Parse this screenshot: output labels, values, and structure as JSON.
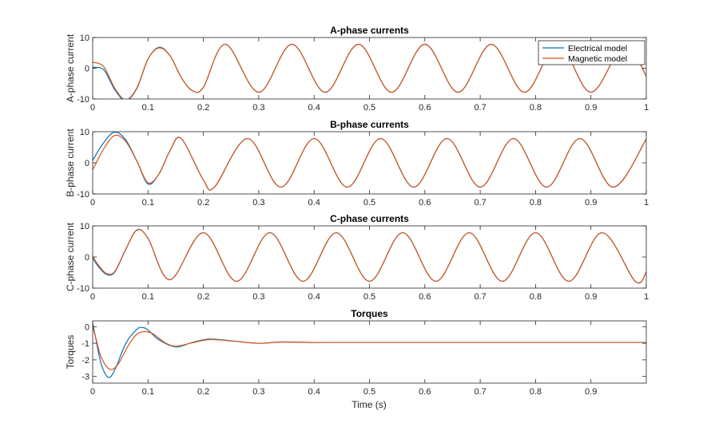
{
  "figure": {
    "xlabel": "Time (s)"
  },
  "colors": {
    "electrical": "#0072BD",
    "magnetic": "#D95319",
    "axis": "#262626",
    "background": "#ffffff"
  },
  "legend": {
    "placement": "top-right of first panel",
    "entries": [
      "Electrical model",
      "Magnetic model"
    ]
  },
  "chart_data": [
    {
      "type": "line",
      "title": "A-phase currents",
      "ylabel": "A-phase current",
      "xlim": [
        0,
        1
      ],
      "ylim": [
        -10,
        10
      ],
      "xticks": [
        0,
        0.1,
        0.2,
        0.3,
        0.4,
        0.5,
        0.6,
        0.7,
        0.8,
        0.9,
        1
      ],
      "xtick_labels": [
        "0",
        "0.1",
        "0.2",
        "0.3",
        "0.4",
        "0.5",
        "0.6",
        "0.7",
        "0.8",
        "0.9",
        "1"
      ],
      "yticks": [
        -10,
        0,
        10
      ],
      "ytick_labels": [
        "-10",
        "0",
        "10"
      ],
      "grid": false,
      "series": [
        {
          "name": "Electrical model",
          "x": [
            0,
            0.02,
            0.04,
            0.06,
            0.08,
            0.1,
            0.12,
            0.14,
            0.16,
            0.18,
            0.2,
            0.24,
            0.3,
            0.36,
            0.42,
            0.48,
            0.54,
            0.6,
            0.66,
            0.72,
            0.78,
            0.84,
            0.9,
            0.96,
            1.0
          ],
          "y": [
            0.3,
            -0.5,
            -7,
            -10.6,
            -6.5,
            3,
            6.8,
            4,
            -3,
            -7.3,
            -6.2,
            7.8,
            -7.8,
            7.8,
            -7.8,
            7.8,
            -7.8,
            7.8,
            -7.8,
            7.8,
            -7.8,
            7.8,
            -7.8,
            7.8,
            -2.6
          ]
        },
        {
          "name": "Magnetic model",
          "x": [
            0,
            0.02,
            0.04,
            0.06,
            0.08,
            0.1,
            0.12,
            0.14,
            0.16,
            0.18,
            0.2,
            0.24,
            0.3,
            0.36,
            0.42,
            0.48,
            0.54,
            0.6,
            0.66,
            0.72,
            0.78,
            0.84,
            0.9,
            0.96,
            1.0
          ],
          "y": [
            2,
            0.5,
            -6.5,
            -10.3,
            -6.3,
            3,
            6.6,
            4,
            -3,
            -7.3,
            -6.2,
            7.8,
            -7.8,
            7.8,
            -7.8,
            7.8,
            -7.8,
            7.8,
            -7.8,
            7.8,
            -7.8,
            7.8,
            -7.8,
            7.8,
            -2.6
          ]
        }
      ]
    },
    {
      "type": "line",
      "title": "B-phase currents",
      "ylabel": "B-phase current",
      "xlim": [
        0,
        1
      ],
      "ylim": [
        -10,
        10
      ],
      "xticks": [
        0,
        0.1,
        0.2,
        0.3,
        0.4,
        0.5,
        0.6,
        0.7,
        0.8,
        0.9,
        1
      ],
      "xtick_labels": [
        "0",
        "0.1",
        "0.2",
        "0.3",
        "0.4",
        "0.5",
        "0.6",
        "0.7",
        "0.8",
        "0.9",
        "1"
      ],
      "yticks": [
        -10,
        0,
        10
      ],
      "ytick_labels": [
        "-10",
        "0",
        "10"
      ],
      "grid": false,
      "series": [
        {
          "name": "Electrical model",
          "x": [
            0,
            0.02,
            0.04,
            0.06,
            0.08,
            0.1,
            0.12,
            0.14,
            0.16,
            0.2,
            0.22,
            0.28,
            0.34,
            0.4,
            0.46,
            0.52,
            0.58,
            0.64,
            0.7,
            0.76,
            0.82,
            0.88,
            0.94,
            1.0
          ],
          "y": [
            0.8,
            6.5,
            9.9,
            7.3,
            0.5,
            -6.8,
            -3.5,
            4,
            7.8,
            -5.5,
            -7.8,
            7.8,
            -7.8,
            7.8,
            -7.8,
            7.8,
            -7.8,
            7.8,
            -7.8,
            7.8,
            -7.8,
            7.8,
            -7.8,
            7.6
          ]
        },
        {
          "name": "Magnetic model",
          "x": [
            0,
            0.02,
            0.04,
            0.06,
            0.08,
            0.1,
            0.12,
            0.14,
            0.16,
            0.2,
            0.22,
            0.28,
            0.34,
            0.4,
            0.46,
            0.52,
            0.58,
            0.64,
            0.7,
            0.76,
            0.82,
            0.88,
            0.94,
            1.0
          ],
          "y": [
            -2.2,
            4.5,
            8.8,
            6.8,
            0.5,
            -6.4,
            -3.5,
            4,
            7.8,
            -5.5,
            -7.8,
            7.8,
            -7.8,
            7.8,
            -7.8,
            7.8,
            -7.8,
            7.8,
            -7.8,
            7.8,
            -7.8,
            7.8,
            -7.8,
            7.6
          ]
        }
      ]
    },
    {
      "type": "line",
      "title": "C-phase currents",
      "ylabel": "C-phase current",
      "xlim": [
        0,
        1
      ],
      "ylim": [
        -10,
        10
      ],
      "xticks": [
        0,
        0.1,
        0.2,
        0.3,
        0.4,
        0.5,
        0.6,
        0.7,
        0.8,
        0.9,
        1
      ],
      "xtick_labels": [
        "0",
        "0.1",
        "0.2",
        "0.3",
        "0.4",
        "0.5",
        "0.6",
        "0.7",
        "0.8",
        "0.9",
        "1"
      ],
      "yticks": [
        -10,
        0,
        10
      ],
      "ytick_labels": [
        "-10",
        "0",
        "10"
      ],
      "grid": false,
      "series": [
        {
          "name": "Electrical model",
          "x": [
            0,
            0.01,
            0.025,
            0.04,
            0.06,
            0.08,
            0.1,
            0.14,
            0.2,
            0.26,
            0.32,
            0.38,
            0.44,
            0.5,
            0.56,
            0.62,
            0.68,
            0.74,
            0.8,
            0.86,
            0.92,
            0.98,
            1.0
          ],
          "y": [
            -0.3,
            -3,
            -5.6,
            -4.8,
            2.5,
            8.7,
            6,
            -7.3,
            7.8,
            -7.8,
            7.8,
            -7.8,
            7.8,
            -7.8,
            7.8,
            -7.8,
            7.8,
            -7.8,
            7.8,
            -7.8,
            7.8,
            -7.8,
            -4.8
          ]
        },
        {
          "name": "Magnetic model",
          "x": [
            0,
            0.01,
            0.025,
            0.04,
            0.06,
            0.08,
            0.1,
            0.14,
            0.2,
            0.26,
            0.32,
            0.38,
            0.44,
            0.5,
            0.56,
            0.62,
            0.68,
            0.74,
            0.8,
            0.86,
            0.92,
            0.98,
            1.0
          ],
          "y": [
            0.2,
            -2.5,
            -5.3,
            -4.6,
            2.6,
            8.6,
            6,
            -7.3,
            7.8,
            -7.8,
            7.8,
            -7.8,
            7.8,
            -7.8,
            7.8,
            -7.8,
            7.8,
            -7.8,
            7.8,
            -7.8,
            7.8,
            -7.8,
            -4.8
          ]
        }
      ]
    },
    {
      "type": "line",
      "title": "Torques",
      "ylabel": "Torques",
      "xlabel": "Time (s)",
      "xlim": [
        0,
        1
      ],
      "ylim": [
        -3.4,
        0.35
      ],
      "xticks": [
        0,
        0.1,
        0.2,
        0.3,
        0.4,
        0.5,
        0.6,
        0.7,
        0.8,
        0.9
      ],
      "xtick_labels": [
        "0",
        "0.1",
        "0.2",
        "0.3",
        "0.4",
        "0.5",
        "0.6",
        "0.7",
        "0.8",
        "0.9"
      ],
      "yticks": [
        -3,
        -2,
        -1,
        0
      ],
      "ytick_labels": [
        "-3",
        "-2",
        "-1",
        "0"
      ],
      "grid": false,
      "series": [
        {
          "name": "Electrical model",
          "x": [
            0,
            0.005,
            0.015,
            0.028,
            0.04,
            0.06,
            0.08,
            0.09,
            0.1,
            0.12,
            0.15,
            0.18,
            0.21,
            0.25,
            0.3,
            0.34,
            0.4,
            0.5,
            0.6,
            0.8,
            1.0
          ],
          "y": [
            0.2,
            -0.6,
            -2.2,
            -3.05,
            -2.6,
            -1.0,
            -0.15,
            -0.05,
            -0.2,
            -0.8,
            -1.22,
            -0.95,
            -0.75,
            -0.85,
            -1.0,
            -0.92,
            -0.95,
            -0.95,
            -0.95,
            -0.95,
            -0.95
          ]
        },
        {
          "name": "Magnetic model",
          "x": [
            0,
            0.005,
            0.015,
            0.03,
            0.045,
            0.065,
            0.08,
            0.095,
            0.11,
            0.13,
            0.15,
            0.18,
            0.21,
            0.25,
            0.3,
            0.34,
            0.4,
            0.5,
            0.6,
            0.8,
            1.0
          ],
          "y": [
            0.0,
            -0.6,
            -1.8,
            -2.55,
            -2.3,
            -1.1,
            -0.45,
            -0.3,
            -0.45,
            -0.95,
            -1.18,
            -0.97,
            -0.78,
            -0.86,
            -1.0,
            -0.93,
            -0.95,
            -0.95,
            -0.95,
            -0.95,
            -0.95
          ]
        }
      ]
    }
  ]
}
